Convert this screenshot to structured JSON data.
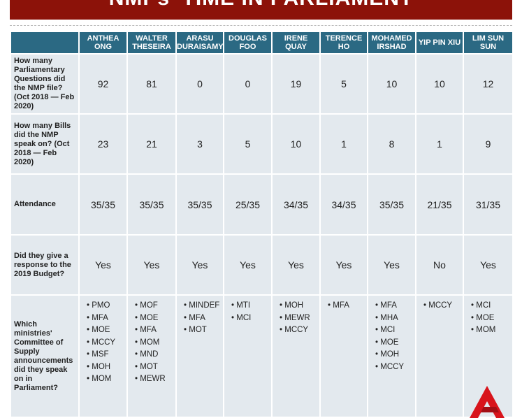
{
  "header": {
    "title": "NMPs' TIME IN PARLIAMENT"
  },
  "table": {
    "columns": [
      [
        "ANTHEA",
        "ONG"
      ],
      [
        "WALTER",
        "THESEIRA"
      ],
      [
        "ARASU",
        "DURAISAMY"
      ],
      [
        "DOUGLAS",
        "FOO"
      ],
      [
        "IRENE QUAY"
      ],
      [
        "TERENCE",
        "HO"
      ],
      [
        "MOHAMED",
        "IRSHAD"
      ],
      [
        "YIP PIN XIU"
      ],
      [
        "LIM SUN SUN"
      ]
    ],
    "rows": [
      {
        "label": "How many Parliamentary Questions did the NMP file? (Oct 2018 — Feb 2020)",
        "cells": [
          92,
          81,
          0,
          0,
          19,
          5,
          10,
          10,
          12
        ]
      },
      {
        "label": "How many Bills did the NMP speak on? (Oct 2018 — Feb 2020)",
        "cells": [
          23,
          21,
          3,
          5,
          10,
          1,
          8,
          1,
          9
        ]
      },
      {
        "label": "Attendance",
        "cells": [
          "35/35",
          "35/35",
          "35/35",
          "25/35",
          "34/35",
          "34/35",
          "35/35",
          "21/35",
          "31/35"
        ]
      },
      {
        "label": "Did they give a response to the 2019 Budget?",
        "cells": [
          "Yes",
          "Yes",
          "Yes",
          "Yes",
          "Yes",
          "Yes",
          "Yes",
          "No",
          "Yes"
        ]
      },
      {
        "label": "Which ministries' Committee of Supply announcements did they speak on in Parliament?",
        "cells": [
          [
            "PMO",
            "MFA",
            "MOE",
            "MCCY",
            "MSF",
            "MOH",
            "MOM"
          ],
          [
            "MOF",
            "MOE",
            "MFA",
            "MOM",
            "MND",
            "MOT",
            "MEWR"
          ],
          [
            "MINDEF",
            "MFA",
            "MOT"
          ],
          [
            "MTI",
            "MCI"
          ],
          [
            "MOH",
            "MEWR",
            "MCCY"
          ],
          [
            "MFA"
          ],
          [
            "MFA",
            "MHA",
            "MCI",
            "MOE",
            "MOH",
            "MCCY"
          ],
          [
            "MCCY"
          ],
          [
            "MCI",
            "MOE",
            "MOM"
          ]
        ]
      }
    ]
  }
}
